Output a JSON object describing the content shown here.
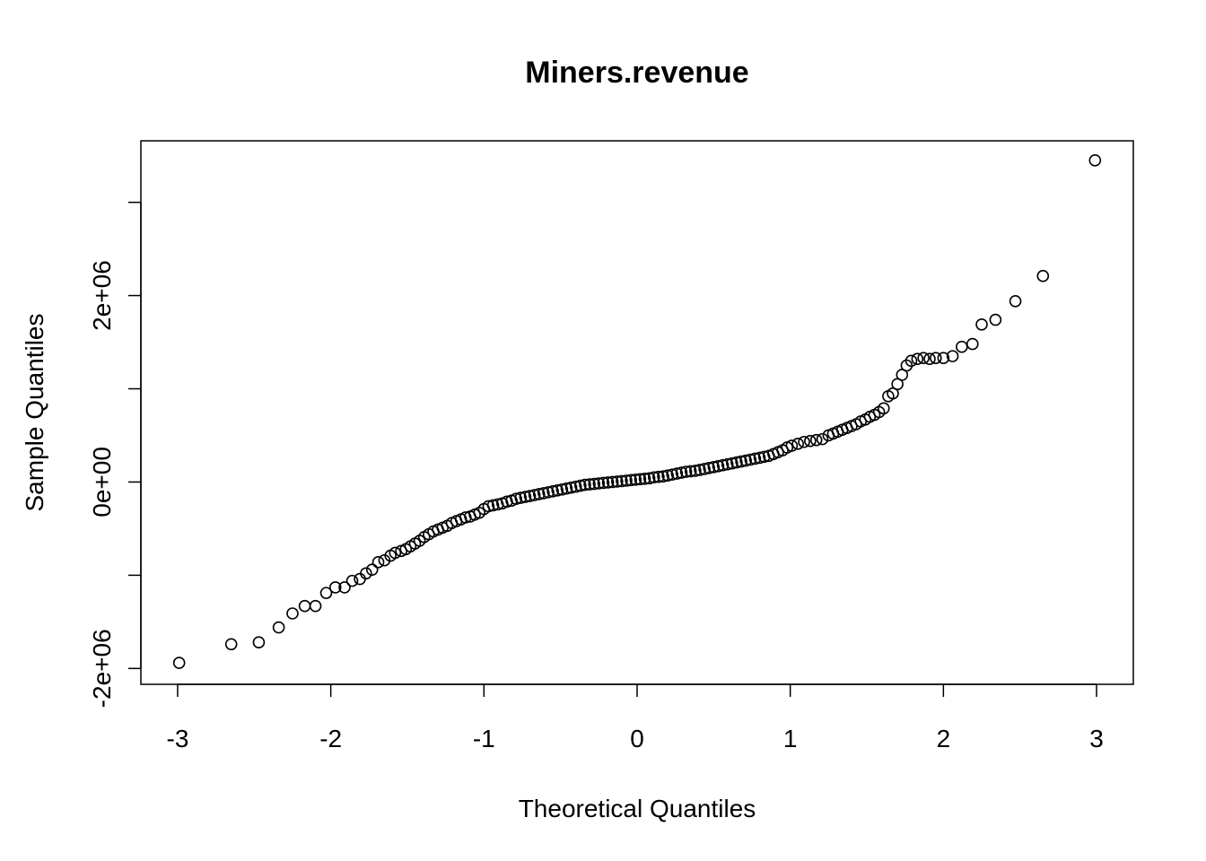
{
  "chart_data": {
    "type": "scatter",
    "title": "Miners.revenue",
    "xlabel": "Theoretical Quantiles",
    "ylabel": "Sample Quantiles",
    "xlim": [
      -3.24,
      3.24
    ],
    "ylim": [
      -2170000,
      3660000
    ],
    "x_ticks": [
      -3,
      -2,
      -1,
      0,
      1,
      2,
      3
    ],
    "x_tick_labels": [
      "-3",
      "-2",
      "-1",
      "0",
      "1",
      "2",
      "3"
    ],
    "y_ticks": [
      -2000000,
      -1000000,
      0,
      1000000,
      2000000,
      3000000
    ],
    "y_tick_labels": [
      "-2e+06",
      "",
      "0e+00",
      "",
      "2e+06",
      ""
    ],
    "marker": "open-circle",
    "grid": false,
    "legend": "none",
    "series": [
      {
        "points": [
          [
            -2.99,
            -1940000
          ],
          [
            -2.65,
            -1740000
          ],
          [
            -2.47,
            -1720000
          ],
          [
            -2.34,
            -1560000
          ],
          [
            -2.25,
            -1410000
          ],
          [
            -2.17,
            -1330000
          ],
          [
            -2.1,
            -1330000
          ],
          [
            -2.03,
            -1190000
          ],
          [
            -1.97,
            -1130000
          ],
          [
            -1.91,
            -1130000
          ],
          [
            -1.86,
            -1060000
          ],
          [
            -1.81,
            -1040000
          ],
          [
            -1.77,
            -980000
          ],
          [
            -1.73,
            -940000
          ],
          [
            -1.69,
            -860000
          ],
          [
            -1.65,
            -840000
          ],
          [
            -1.61,
            -790000
          ],
          [
            -1.58,
            -760000
          ],
          [
            -1.54,
            -740000
          ],
          [
            -1.51,
            -720000
          ],
          [
            -1.48,
            -690000
          ],
          [
            -1.45,
            -660000
          ],
          [
            -1.42,
            -630000
          ],
          [
            -1.39,
            -590000
          ],
          [
            -1.36,
            -560000
          ],
          [
            -1.33,
            -530000
          ],
          [
            -1.3,
            -510000
          ],
          [
            -1.27,
            -490000
          ],
          [
            -1.24,
            -470000
          ],
          [
            -1.21,
            -440000
          ],
          [
            -1.18,
            -420000
          ],
          [
            -1.15,
            -400000
          ],
          [
            -1.12,
            -380000
          ],
          [
            -1.09,
            -370000
          ],
          [
            -1.06,
            -350000
          ],
          [
            -1.03,
            -330000
          ],
          [
            -1.0,
            -290000
          ],
          [
            -0.97,
            -260000
          ],
          [
            -0.94,
            -250000
          ],
          [
            -0.91,
            -240000
          ],
          [
            -0.88,
            -230000
          ],
          [
            -0.85,
            -210000
          ],
          [
            -0.82,
            -200000
          ],
          [
            -0.79,
            -180000
          ],
          [
            -0.76,
            -170000
          ],
          [
            -0.73,
            -160000
          ],
          [
            -0.7,
            -150000
          ],
          [
            -0.67,
            -140000
          ],
          [
            -0.64,
            -130000
          ],
          [
            -0.61,
            -120000
          ],
          [
            -0.58,
            -110000
          ],
          [
            -0.55,
            -100000
          ],
          [
            -0.52,
            -90000
          ],
          [
            -0.49,
            -80000
          ],
          [
            -0.46,
            -70000
          ],
          [
            -0.43,
            -60000
          ],
          [
            -0.4,
            -50000
          ],
          [
            -0.37,
            -40000
          ],
          [
            -0.34,
            -30000
          ],
          [
            -0.31,
            -25000
          ],
          [
            -0.28,
            -20000
          ],
          [
            -0.25,
            -15000
          ],
          [
            -0.22,
            -10000
          ],
          [
            -0.19,
            -5000
          ],
          [
            -0.16,
            0
          ],
          [
            -0.13,
            5000
          ],
          [
            -0.1,
            10000
          ],
          [
            -0.07,
            15000
          ],
          [
            -0.04,
            20000
          ],
          [
            -0.01,
            25000
          ],
          [
            0.02,
            30000
          ],
          [
            0.05,
            35000
          ],
          [
            0.08,
            40000
          ],
          [
            0.11,
            50000
          ],
          [
            0.14,
            55000
          ],
          [
            0.17,
            60000
          ],
          [
            0.2,
            70000
          ],
          [
            0.23,
            80000
          ],
          [
            0.26,
            90000
          ],
          [
            0.29,
            100000
          ],
          [
            0.32,
            110000
          ],
          [
            0.35,
            115000
          ],
          [
            0.38,
            120000
          ],
          [
            0.41,
            130000
          ],
          [
            0.44,
            140000
          ],
          [
            0.47,
            150000
          ],
          [
            0.5,
            160000
          ],
          [
            0.53,
            170000
          ],
          [
            0.56,
            180000
          ],
          [
            0.59,
            190000
          ],
          [
            0.62,
            200000
          ],
          [
            0.65,
            210000
          ],
          [
            0.68,
            220000
          ],
          [
            0.71,
            230000
          ],
          [
            0.74,
            240000
          ],
          [
            0.77,
            250000
          ],
          [
            0.8,
            260000
          ],
          [
            0.83,
            270000
          ],
          [
            0.86,
            280000
          ],
          [
            0.89,
            300000
          ],
          [
            0.92,
            320000
          ],
          [
            0.95,
            340000
          ],
          [
            0.98,
            370000
          ],
          [
            1.01,
            390000
          ],
          [
            1.05,
            410000
          ],
          [
            1.09,
            430000
          ],
          [
            1.13,
            440000
          ],
          [
            1.17,
            450000
          ],
          [
            1.21,
            460000
          ],
          [
            1.25,
            500000
          ],
          [
            1.28,
            520000
          ],
          [
            1.31,
            540000
          ],
          [
            1.34,
            560000
          ],
          [
            1.37,
            580000
          ],
          [
            1.4,
            600000
          ],
          [
            1.43,
            620000
          ],
          [
            1.46,
            650000
          ],
          [
            1.49,
            670000
          ],
          [
            1.52,
            700000
          ],
          [
            1.55,
            720000
          ],
          [
            1.58,
            750000
          ],
          [
            1.61,
            790000
          ],
          [
            1.64,
            920000
          ],
          [
            1.67,
            950000
          ],
          [
            1.7,
            1050000
          ],
          [
            1.73,
            1150000
          ],
          [
            1.76,
            1250000
          ],
          [
            1.79,
            1300000
          ],
          [
            1.83,
            1320000
          ],
          [
            1.87,
            1330000
          ],
          [
            1.91,
            1320000
          ],
          [
            1.95,
            1330000
          ],
          [
            2.0,
            1330000
          ],
          [
            2.06,
            1350000
          ],
          [
            2.12,
            1450000
          ],
          [
            2.19,
            1480000
          ],
          [
            2.25,
            1690000
          ],
          [
            2.34,
            1740000
          ],
          [
            2.47,
            1940000
          ],
          [
            2.65,
            2210000
          ],
          [
            2.99,
            3450000
          ]
        ]
      }
    ]
  }
}
